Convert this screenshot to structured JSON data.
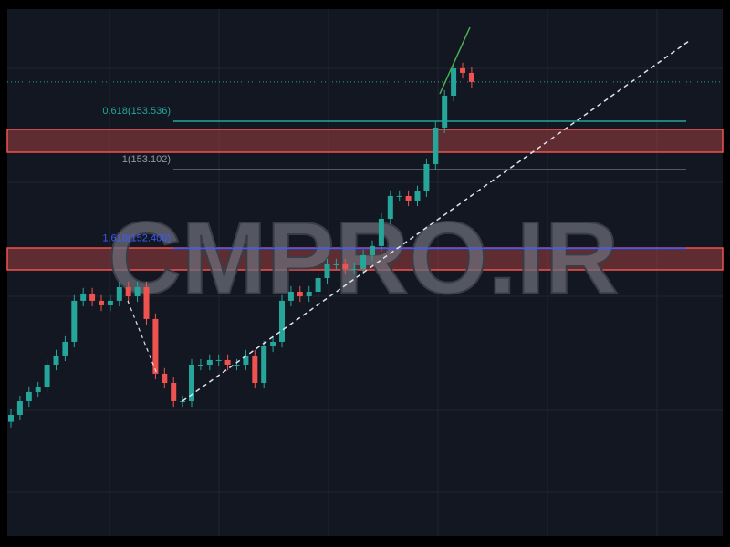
{
  "chart_data": {
    "type": "candlestick",
    "watermark": "CMPRO.IR",
    "ylim": [
      149.828,
      154.538
    ],
    "up_color": "#26a69a",
    "down_color": "#ef5350",
    "levels": [
      {
        "value": 153.536,
        "label": "0.618(153.536)",
        "color": "#26a69a"
      },
      {
        "value": 153.102,
        "label": "1(153.102)",
        "color": "#9598a1"
      },
      {
        "value": 152.4,
        "label": "1.618(152.400)",
        "color": "#3d5afe"
      }
    ],
    "open": [
      150.85,
      150.912,
      151.034,
      151.116,
      151.156,
      151.36,
      151.442,
      151.564,
      151.931,
      151.996,
      151.931,
      151.89,
      151.931,
      152.053,
      151.971,
      152.053,
      151.768,
      151.279,
      151.197,
      151.034,
      151.034,
      151.36,
      151.36,
      151.401,
      151.401,
      151.36,
      151.36,
      151.442,
      151.197,
      151.523,
      151.564,
      151.931,
      152.012,
      151.971,
      152.012,
      152.134,
      152.257,
      152.257,
      152.216,
      152.216,
      152.338,
      152.42,
      152.664,
      152.868,
      152.868,
      152.827,
      152.909,
      153.153,
      153.479,
      153.764,
      154.009,
      153.968
    ],
    "high": [
      150.962,
      151.084,
      151.166,
      151.206,
      151.41,
      151.492,
      151.614,
      151.981,
      152.046,
      152.046,
      151.981,
      151.981,
      152.103,
      152.103,
      152.103,
      152.103,
      151.818,
      151.329,
      151.247,
      151.084,
      151.41,
      151.41,
      151.451,
      151.451,
      151.451,
      151.41,
      151.492,
      151.492,
      151.573,
      151.614,
      151.981,
      152.062,
      152.062,
      152.062,
      152.184,
      152.307,
      152.307,
      152.307,
      152.266,
      152.388,
      152.47,
      152.714,
      152.918,
      152.918,
      152.918,
      152.959,
      153.203,
      153.529,
      153.814,
      154.059,
      154.059,
      154.018
    ],
    "low": [
      150.8,
      150.862,
      150.984,
      151.066,
      151.106,
      151.31,
      151.392,
      151.514,
      151.881,
      151.881,
      151.84,
      151.84,
      151.881,
      151.921,
      151.921,
      151.718,
      151.229,
      151.147,
      150.984,
      150.984,
      150.984,
      151.31,
      151.31,
      151.351,
      151.31,
      151.31,
      151.31,
      151.147,
      151.147,
      151.473,
      151.514,
      151.881,
      151.921,
      151.921,
      151.962,
      152.084,
      152.207,
      152.166,
      152.166,
      152.166,
      152.288,
      152.37,
      152.614,
      152.818,
      152.777,
      152.777,
      152.859,
      153.103,
      153.429,
      153.714,
      153.918,
      153.837
    ],
    "close": [
      150.912,
      151.034,
      151.116,
      151.156,
      151.36,
      151.442,
      151.564,
      151.931,
      151.996,
      151.931,
      151.89,
      151.931,
      152.053,
      151.971,
      152.053,
      151.768,
      151.279,
      151.197,
      151.034,
      151.034,
      151.36,
      151.36,
      151.401,
      151.401,
      151.36,
      151.36,
      151.442,
      151.197,
      151.523,
      151.564,
      151.931,
      152.012,
      151.971,
      152.012,
      152.134,
      152.257,
      152.257,
      152.216,
      152.216,
      152.338,
      152.42,
      152.664,
      152.868,
      152.868,
      152.827,
      152.909,
      153.153,
      153.479,
      153.764,
      154.009,
      153.968,
      153.887
    ]
  }
}
